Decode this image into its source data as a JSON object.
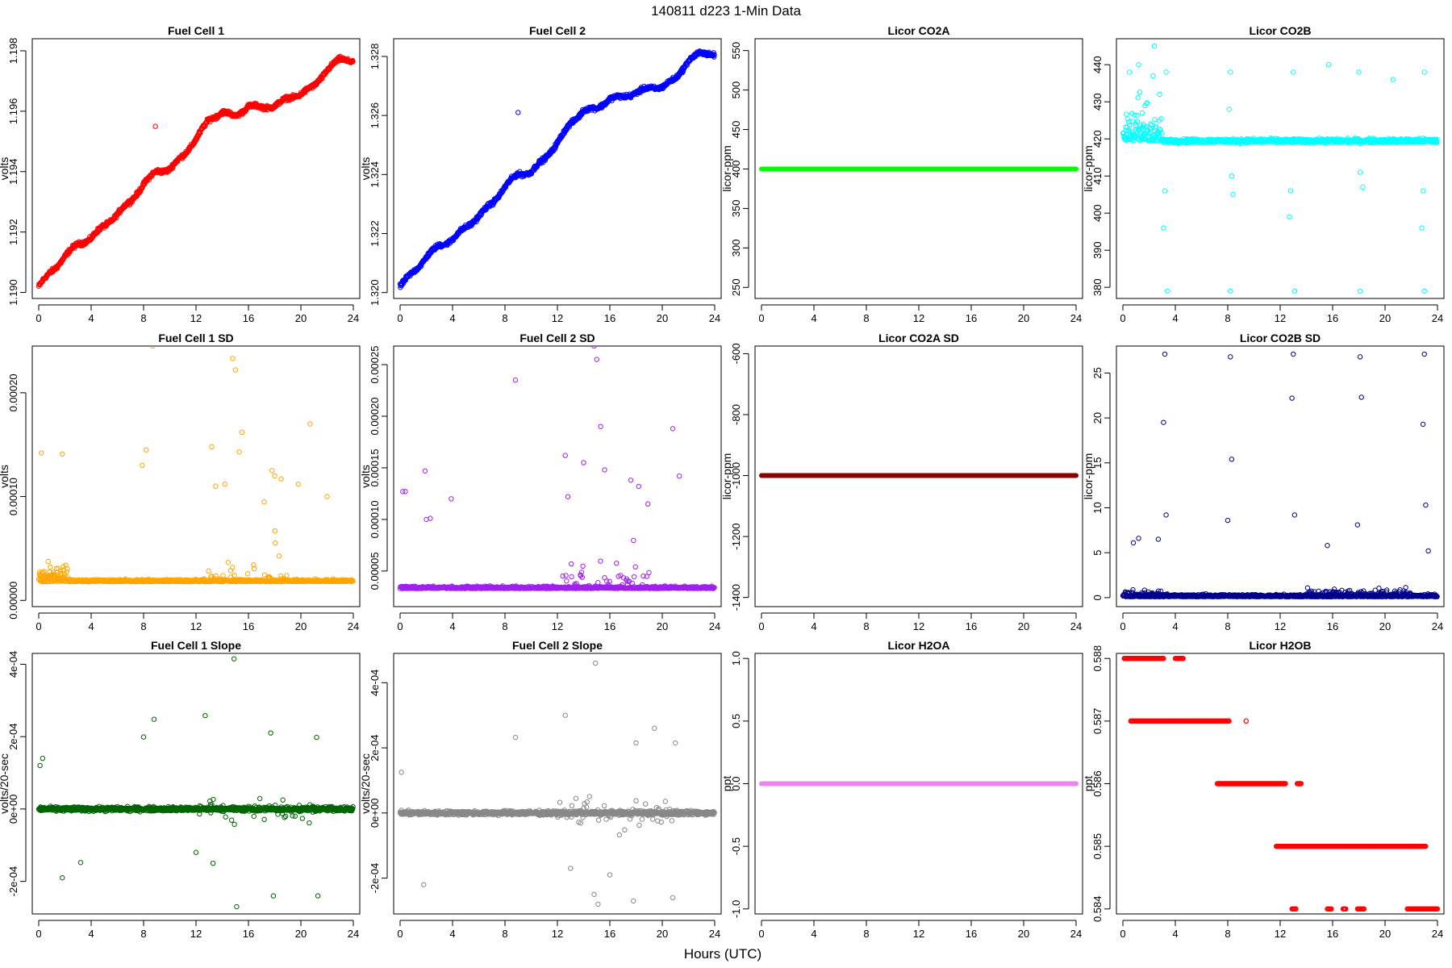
{
  "page": {
    "title": "140811    d223    1-Min Data",
    "xlabel": "Hours (UTC)"
  },
  "chart_data": [
    {
      "id": "fc1",
      "type": "scatter",
      "title": "Fuel Cell 1",
      "ylabel": "volts",
      "color": "#ff0000",
      "xlim": [
        0,
        24
      ],
      "ylim": [
        1.1898,
        1.1984
      ],
      "xticks": [
        "0",
        "4",
        "8",
        "12",
        "16",
        "20",
        "24"
      ],
      "yticks": [
        {
          "v": 1.19,
          "label": "1.190"
        },
        {
          "v": 1.192,
          "label": "1.192"
        },
        {
          "v": 1.194,
          "label": "1.194"
        },
        {
          "v": 1.196,
          "label": "1.196"
        },
        {
          "v": 1.198,
          "label": "1.198"
        }
      ],
      "trend": [
        [
          0,
          1.1902
        ],
        [
          1,
          1.1907
        ],
        [
          2,
          1.1912
        ],
        [
          3,
          1.1916
        ],
        [
          4,
          1.1918
        ],
        [
          5,
          1.1922
        ],
        [
          6,
          1.1926
        ],
        [
          7,
          1.193
        ],
        [
          8,
          1.1936
        ],
        [
          9,
          1.194
        ],
        [
          10,
          1.1941
        ],
        [
          11,
          1.1945
        ],
        [
          12,
          1.1951
        ],
        [
          13,
          1.1957
        ],
        [
          14,
          1.196
        ],
        [
          15,
          1.1958
        ],
        [
          16,
          1.1962
        ],
        [
          17,
          1.1961
        ],
        [
          18,
          1.1962
        ],
        [
          19,
          1.1964
        ],
        [
          20,
          1.1966
        ],
        [
          21,
          1.1968
        ],
        [
          22,
          1.1974
        ],
        [
          23,
          1.1977
        ],
        [
          24,
          1.1977
        ]
      ],
      "outliers": [
        [
          8.9,
          1.1955
        ]
      ]
    },
    {
      "id": "fc2",
      "type": "scatter",
      "title": "Fuel Cell 2",
      "ylabel": "volts",
      "color": "#0000ff",
      "xlim": [
        0,
        24
      ],
      "ylim": [
        1.3198,
        1.3286
      ],
      "xticks": [
        "0",
        "4",
        "8",
        "12",
        "16",
        "20",
        "24"
      ],
      "yticks": [
        {
          "v": 1.32,
          "label": "1.320"
        },
        {
          "v": 1.322,
          "label": "1.322"
        },
        {
          "v": 1.324,
          "label": "1.324"
        },
        {
          "v": 1.326,
          "label": "1.326"
        },
        {
          "v": 1.328,
          "label": "1.328"
        }
      ],
      "trend": [
        [
          0,
          1.3202
        ],
        [
          1,
          1.3207
        ],
        [
          2,
          1.3212
        ],
        [
          3,
          1.3216
        ],
        [
          4,
          1.3218
        ],
        [
          5,
          1.3222
        ],
        [
          6,
          1.3226
        ],
        [
          7,
          1.323
        ],
        [
          8,
          1.3236
        ],
        [
          9,
          1.324
        ],
        [
          10,
          1.3241
        ],
        [
          11,
          1.3245
        ],
        [
          12,
          1.3251
        ],
        [
          13,
          1.3257
        ],
        [
          14,
          1.3262
        ],
        [
          15,
          1.3262
        ],
        [
          16,
          1.3266
        ],
        [
          17,
          1.3266
        ],
        [
          18,
          1.3268
        ],
        [
          19,
          1.3269
        ],
        [
          20,
          1.327
        ],
        [
          21,
          1.3272
        ],
        [
          22,
          1.3279
        ],
        [
          23,
          1.3281
        ],
        [
          24,
          1.3281
        ]
      ],
      "outliers": [
        [
          9.0,
          1.3261
        ]
      ]
    },
    {
      "id": "co2a",
      "type": "scatter",
      "title": "Licor CO2A",
      "ylabel": "licor-ppm",
      "color": "#00ff00",
      "xlim": [
        0,
        24
      ],
      "ylim": [
        236,
        565
      ],
      "xticks": [
        "0",
        "4",
        "8",
        "12",
        "16",
        "20",
        "24"
      ],
      "yticks": [
        {
          "v": 250,
          "label": "250"
        },
        {
          "v": 300,
          "label": "300"
        },
        {
          "v": 350,
          "label": "350"
        },
        {
          "v": 400,
          "label": "400"
        },
        {
          "v": 450,
          "label": "450"
        },
        {
          "v": 500,
          "label": "500"
        },
        {
          "v": 550,
          "label": "550"
        }
      ],
      "constant": 400
    },
    {
      "id": "co2b",
      "type": "scatter",
      "title": "Licor CO2B",
      "ylabel": "licor-ppm",
      "color": "#00ffff",
      "xlim": [
        0,
        24
      ],
      "ylim": [
        377,
        447
      ],
      "xticks": [
        "0",
        "4",
        "8",
        "12",
        "16",
        "20",
        "24"
      ],
      "yticks": [
        {
          "v": 380,
          "label": "380"
        },
        {
          "v": 390,
          "label": "390"
        },
        {
          "v": 400,
          "label": "400"
        },
        {
          "v": 410,
          "label": "410"
        },
        {
          "v": 420,
          "label": "420"
        },
        {
          "v": 430,
          "label": "430"
        },
        {
          "v": 440,
          "label": "440"
        }
      ],
      "baseline": 419.5,
      "outliers": [
        [
          0.5,
          438
        ],
        [
          1.2,
          440
        ],
        [
          2.3,
          437
        ],
        [
          2.4,
          445
        ],
        [
          2.8,
          432
        ],
        [
          3.2,
          406
        ],
        [
          3.1,
          396
        ],
        [
          3.3,
          438
        ],
        [
          3.4,
          379
        ],
        [
          8.2,
          438
        ],
        [
          8.1,
          428
        ],
        [
          8.3,
          410
        ],
        [
          8.4,
          405
        ],
        [
          8.2,
          379
        ],
        [
          13.0,
          438
        ],
        [
          12.8,
          406
        ],
        [
          12.7,
          399
        ],
        [
          13.1,
          379
        ],
        [
          15.7,
          440
        ],
        [
          18.0,
          438
        ],
        [
          18.1,
          411
        ],
        [
          18.3,
          407
        ],
        [
          18.1,
          379
        ],
        [
          20.6,
          436
        ],
        [
          23.0,
          438
        ],
        [
          22.9,
          406
        ],
        [
          22.8,
          396
        ],
        [
          23.0,
          379
        ]
      ]
    },
    {
      "id": "fc1sd",
      "type": "scatter",
      "title": "Fuel Cell 1 SD",
      "ylabel": "volts",
      "color": "#ffa500",
      "xlim": [
        0,
        24
      ],
      "ylim": [
        -6e-06,
        0.000245
      ],
      "xticks": [
        "0",
        "4",
        "8",
        "12",
        "16",
        "20",
        "24"
      ],
      "yticks": [
        {
          "v": 0,
          "label": "0.00000"
        },
        {
          "v": 0.0001,
          "label": "0.00010"
        },
        {
          "v": 0.0002,
          "label": "0.00020"
        }
      ],
      "baseline": 1.8e-05,
      "outliers": [
        [
          8.7,
          0.000245
        ],
        [
          14.8,
          0.000233
        ],
        [
          15.0,
          0.000222
        ],
        [
          15.5,
          0.000162
        ],
        [
          20.7,
          0.00017
        ],
        [
          8.2,
          0.000145
        ],
        [
          13.2,
          0.000148
        ],
        [
          15.3,
          0.000143
        ],
        [
          0.2,
          0.000142
        ],
        [
          1.8,
          0.000141
        ],
        [
          7.9,
          0.00013
        ],
        [
          17.8,
          0.000125
        ],
        [
          18.0,
          0.00012
        ],
        [
          18.5,
          0.000117
        ],
        [
          19.8,
          0.000112
        ],
        [
          14.2,
          0.000112
        ],
        [
          13.5,
          0.00011
        ],
        [
          22.0,
          0.0001
        ],
        [
          17.2,
          9.5e-05
        ]
      ]
    },
    {
      "id": "fc2sd",
      "type": "scatter",
      "title": "Fuel Cell 2 SD",
      "ylabel": "volts",
      "color": "#a020f0",
      "xlim": [
        0,
        24
      ],
      "ylim": [
        1.55e-05,
        0.000268
      ],
      "xticks": [
        "0",
        "4",
        "8",
        "12",
        "16",
        "20",
        "24"
      ],
      "yticks": [
        {
          "v": 5e-05,
          "label": "0.00005"
        },
        {
          "v": 0.0001,
          "label": "0.00010"
        },
        {
          "v": 0.00015,
          "label": "0.00015"
        },
        {
          "v": 0.0002,
          "label": "0.00020"
        },
        {
          "v": 0.00025,
          "label": "0.00025"
        }
      ],
      "baseline": 3.3e-05,
      "outliers": [
        [
          14.8,
          0.000268
        ],
        [
          15.0,
          0.000255
        ],
        [
          8.8,
          0.000235
        ],
        [
          15.3,
          0.00019
        ],
        [
          20.8,
          0.000188
        ],
        [
          21.3,
          0.000142
        ],
        [
          12.6,
          0.000162
        ],
        [
          14.0,
          0.000155
        ],
        [
          15.6,
          0.000148
        ],
        [
          0.2,
          0.000127
        ],
        [
          0.4,
          0.000127
        ],
        [
          1.9,
          0.000147
        ],
        [
          2.0,
          0.0001
        ],
        [
          2.3,
          0.000101
        ],
        [
          3.9,
          0.00012
        ],
        [
          17.6,
          0.000138
        ],
        [
          18.2,
          0.000132
        ],
        [
          18.9,
          0.000115
        ],
        [
          12.8,
          0.000122
        ]
      ]
    },
    {
      "id": "co2asd",
      "type": "scatter",
      "title": "Licor CO2A SD",
      "ylabel": "licor-ppm",
      "color": "#8b0000",
      "xlim": [
        0,
        24
      ],
      "ylim": [
        -1430,
        -575
      ],
      "xticks": [
        "0",
        "4",
        "8",
        "12",
        "16",
        "20",
        "24"
      ],
      "yticks": [
        {
          "v": -1400,
          "label": "-1400"
        },
        {
          "v": -1200,
          "label": "-1200"
        },
        {
          "v": -1000,
          "label": "-1000"
        },
        {
          "v": -800,
          "label": "-800"
        },
        {
          "v": -600,
          "label": "-600"
        }
      ],
      "constant": -1000
    },
    {
      "id": "co2bsd",
      "type": "scatter",
      "title": "Licor CO2B SD",
      "ylabel": "licor-ppm",
      "color": "#00008b",
      "xlim": [
        0,
        24
      ],
      "ylim": [
        -1,
        28
      ],
      "xticks": [
        "0",
        "4",
        "8",
        "12",
        "16",
        "20",
        "24"
      ],
      "yticks": [
        {
          "v": 0,
          "label": "0"
        },
        {
          "v": 5,
          "label": "5"
        },
        {
          "v": 10,
          "label": "10"
        },
        {
          "v": 15,
          "label": "15"
        },
        {
          "v": 20,
          "label": "20"
        },
        {
          "v": 25,
          "label": "25"
        }
      ],
      "baseline": 0.1,
      "outliers": [
        [
          3.2,
          27.1
        ],
        [
          3.1,
          19.5
        ],
        [
          3.3,
          9.2
        ],
        [
          8.2,
          26.8
        ],
        [
          8.3,
          15.4
        ],
        [
          8.0,
          8.6
        ],
        [
          13.0,
          27.1
        ],
        [
          12.9,
          22.2
        ],
        [
          13.1,
          9.2
        ],
        [
          18.1,
          26.8
        ],
        [
          18.2,
          22.3
        ],
        [
          17.9,
          8.1
        ],
        [
          23.0,
          27.1
        ],
        [
          22.9,
          19.3
        ],
        [
          23.1,
          10.3
        ],
        [
          23.3,
          5.2
        ],
        [
          15.6,
          5.8
        ],
        [
          0.8,
          6.1
        ],
        [
          1.2,
          6.6
        ],
        [
          2.7,
          6.5
        ]
      ]
    },
    {
      "id": "fc1slope",
      "type": "scatter",
      "title": "Fuel Cell 1 Slope",
      "ylabel": "volts/20-sec",
      "color": "#006400",
      "xlim": [
        0,
        24
      ],
      "ylim": [
        -0.00029,
        0.00043
      ],
      "xticks": [
        "0",
        "4",
        "8",
        "12",
        "16",
        "20",
        "24"
      ],
      "yticks": [
        {
          "v": -0.0002,
          "label": "-2e-04"
        },
        {
          "v": 0,
          "label": "0e+00"
        },
        {
          "v": 0.0002,
          "label": "2e-04"
        },
        {
          "v": 0.0004,
          "label": "4e-04"
        }
      ],
      "baseline": 0,
      "outliers": [
        [
          14.9,
          0.000415
        ],
        [
          12.7,
          0.000258
        ],
        [
          8.8,
          0.000248
        ],
        [
          8.0,
          0.000199
        ],
        [
          17.7,
          0.00021
        ],
        [
          21.2,
          0.000198
        ],
        [
          0.3,
          0.00014
        ],
        [
          0.1,
          0.00012
        ],
        [
          15.1,
          -0.00027
        ],
        [
          17.9,
          -0.00024
        ],
        [
          21.3,
          -0.00024
        ],
        [
          1.8,
          -0.00019
        ],
        [
          12.0,
          -0.00012
        ],
        [
          13.3,
          -0.00015
        ],
        [
          3.2,
          -0.000148
        ]
      ]
    },
    {
      "id": "fc2slope",
      "type": "scatter",
      "title": "Fuel Cell 2 Slope",
      "ylabel": "volts/20-sec",
      "color": "#888888",
      "xlim": [
        0,
        24
      ],
      "ylim": [
        -0.00031,
        0.00049
      ],
      "xticks": [
        "0",
        "4",
        "8",
        "12",
        "16",
        "20",
        "24"
      ],
      "yticks": [
        {
          "v": -0.0002,
          "label": "-2e-04"
        },
        {
          "v": 0,
          "label": "0e+00"
        },
        {
          "v": 0.0002,
          "label": "2e-04"
        },
        {
          "v": 0.0004,
          "label": "4e-04"
        }
      ],
      "baseline": 0,
      "outliers": [
        [
          14.9,
          0.00046
        ],
        [
          12.6,
          0.0003
        ],
        [
          19.4,
          0.00026
        ],
        [
          8.8,
          0.000232
        ],
        [
          21.0,
          0.000215
        ],
        [
          18.0,
          0.000215
        ],
        [
          0.1,
          0.000125
        ],
        [
          1.8,
          -0.00022
        ],
        [
          15.1,
          -0.00028
        ],
        [
          14.8,
          -0.00025
        ],
        [
          17.8,
          -0.00027
        ],
        [
          20.8,
          -0.00026
        ],
        [
          13.0,
          -0.00017
        ],
        [
          16.0,
          -0.00019
        ]
      ]
    },
    {
      "id": "h2oa",
      "type": "scatter",
      "title": "Licor H2OA",
      "ylabel": "ppt",
      "color": "#ee82ee",
      "xlim": [
        0,
        24
      ],
      "ylim": [
        -1.04,
        1.04
      ],
      "xticks": [
        "0",
        "4",
        "8",
        "12",
        "16",
        "20",
        "24"
      ],
      "yticks": [
        {
          "v": -1,
          "label": "-1.0"
        },
        {
          "v": -0.5,
          "label": "-0.5"
        },
        {
          "v": 0,
          "label": "0.0"
        },
        {
          "v": 0.5,
          "label": "0.5"
        },
        {
          "v": 1,
          "label": "1.0"
        }
      ],
      "constant": 0
    },
    {
      "id": "h2ob",
      "type": "scatter",
      "title": "Licor H2OB",
      "ylabel": "ppt",
      "color": "#ff0000",
      "xlim": [
        0,
        24
      ],
      "ylim": [
        0.58392,
        0.58808
      ],
      "xticks": [
        "0",
        "4",
        "8",
        "12",
        "16",
        "20",
        "24"
      ],
      "yticks": [
        {
          "v": 0.584,
          "label": "0.584"
        },
        {
          "v": 0.585,
          "label": "0.585"
        },
        {
          "v": 0.586,
          "label": "0.586"
        },
        {
          "v": 0.587,
          "label": "0.587"
        },
        {
          "v": 0.588,
          "label": "0.588"
        }
      ],
      "segments": [
        [
          0.588,
          0.1,
          3.1
        ],
        [
          0.588,
          4.0,
          4.6
        ],
        [
          0.587,
          3.0,
          8.1
        ],
        [
          0.587,
          0.6,
          2.9
        ],
        [
          0.587,
          9.4,
          9.4
        ],
        [
          0.586,
          7.2,
          12.4
        ],
        [
          0.586,
          13.3,
          13.6
        ],
        [
          0.585,
          11.7,
          23.1
        ],
        [
          0.584,
          12.9,
          13.2
        ],
        [
          0.584,
          15.6,
          15.9
        ],
        [
          0.584,
          16.8,
          17.0
        ],
        [
          0.584,
          17.9,
          18.4
        ],
        [
          0.584,
          21.7,
          24.0
        ]
      ]
    }
  ]
}
